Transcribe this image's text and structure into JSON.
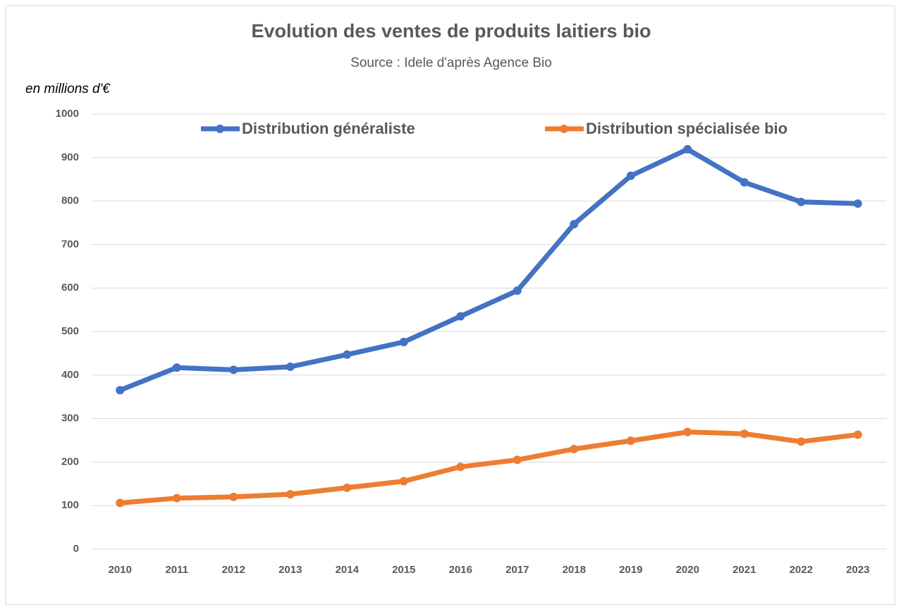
{
  "chart_data": {
    "type": "line",
    "title": "Evolution des ventes de produits laitiers bio",
    "subtitle": "Source : Idele d'après Agence Bio",
    "y_label": "en millions d'€",
    "categories": [
      "2010",
      "2011",
      "2012",
      "2013",
      "2014",
      "2015",
      "2016",
      "2017",
      "2018",
      "2019",
      "2020",
      "2021",
      "2022",
      "2023"
    ],
    "series": [
      {
        "name": "Distribution généraliste",
        "color": "#4472c4",
        "values": [
          365,
          417,
          412,
          419,
          447,
          476,
          535,
          594,
          747,
          858,
          919,
          843,
          798,
          794
        ]
      },
      {
        "name": "Distribution spécialisée bio",
        "color": "#ed7d31",
        "values": [
          106,
          117,
          120,
          126,
          141,
          156,
          189,
          205,
          230,
          249,
          269,
          265,
          247,
          263
        ]
      }
    ],
    "ylim": [
      0,
      1000
    ],
    "yticks": [
      0,
      100,
      200,
      300,
      400,
      500,
      600,
      700,
      800,
      900,
      1000
    ],
    "grid": true,
    "legend": "top"
  }
}
